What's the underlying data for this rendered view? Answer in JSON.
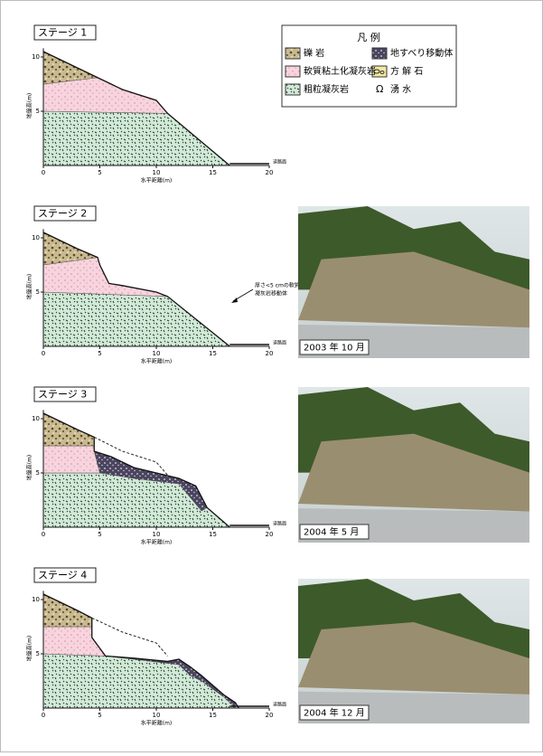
{
  "stages": [
    {
      "label": "ステージ 1"
    },
    {
      "label": "ステージ 2"
    },
    {
      "label": "ステージ 3"
    },
    {
      "label": "ステージ 4"
    }
  ],
  "legend": {
    "title": "凡 例",
    "items": [
      "礫 岩",
      "地すべり移動体",
      "軟質粘土化凝灰岩",
      "方 解 石",
      "粗粒凝灰岩",
      "湧 水"
    ]
  },
  "axis": {
    "xticks": [
      0,
      5,
      10,
      15,
      20
    ],
    "yticks": [
      5,
      10
    ],
    "xlabel": "水平距離(m)",
    "ylabel": "地盤高(m)",
    "road": "道路面"
  },
  "annotation": [
    "厚さ<5 cmの軟質粘土化",
    "凝灰岩移動体"
  ],
  "photos": [
    {
      "caption": "2003 年 10 月"
    },
    {
      "caption": "2004 年 5 月"
    },
    {
      "caption": "2004 年 12 月"
    }
  ]
}
